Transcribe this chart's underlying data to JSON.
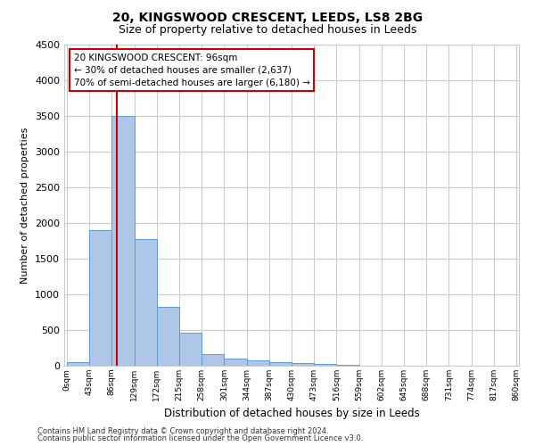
{
  "title_line1": "20, KINGSWOOD CRESCENT, LEEDS, LS8 2BG",
  "title_line2": "Size of property relative to detached houses in Leeds",
  "xlabel": "Distribution of detached houses by size in Leeds",
  "ylabel": "Number of detached properties",
  "property_size": 96,
  "bin_width": 43,
  "bins_left": [
    0,
    43,
    86,
    129,
    172,
    215,
    258,
    301,
    344,
    387,
    430,
    473,
    516,
    559,
    602,
    645,
    688,
    731,
    774,
    817
  ],
  "bar_heights": [
    50,
    1900,
    3500,
    1780,
    830,
    460,
    160,
    100,
    70,
    55,
    35,
    20,
    10,
    5,
    3,
    2,
    1,
    1,
    0,
    0
  ],
  "bar_color": "#aec6e8",
  "bar_edge_color": "#5b9bd5",
  "vline_color": "#cc0000",
  "vline_x": 96,
  "annotation_text": "20 KINGSWOOD CRESCENT: 96sqm\n← 30% of detached houses are smaller (2,637)\n70% of semi-detached houses are larger (6,180) →",
  "annotation_box_color": "#ffffff",
  "annotation_box_edge_color": "#cc0000",
  "ylim": [
    0,
    4500
  ],
  "yticks": [
    0,
    500,
    1000,
    1500,
    2000,
    2500,
    3000,
    3500,
    4000,
    4500
  ],
  "tick_labels": [
    "0sqm",
    "43sqm",
    "86sqm",
    "129sqm",
    "172sqm",
    "215sqm",
    "258sqm",
    "301sqm",
    "344sqm",
    "387sqm",
    "430sqm",
    "473sqm",
    "516sqm",
    "559sqm",
    "602sqm",
    "645sqm",
    "688sqm",
    "731sqm",
    "774sqm",
    "817sqm",
    "860sqm"
  ],
  "footer_line1": "Contains HM Land Registry data © Crown copyright and database right 2024.",
  "footer_line2": "Contains public sector information licensed under the Open Government Licence v3.0.",
  "bg_color": "#ffffff",
  "grid_color": "#cccccc",
  "title_fontsize": 10,
  "subtitle_fontsize": 9,
  "ylabel_fontsize": 8,
  "xlabel_fontsize": 8.5,
  "footer_fontsize": 6,
  "annotation_fontsize": 7.5,
  "ytick_fontsize": 8,
  "xtick_fontsize": 6.5
}
